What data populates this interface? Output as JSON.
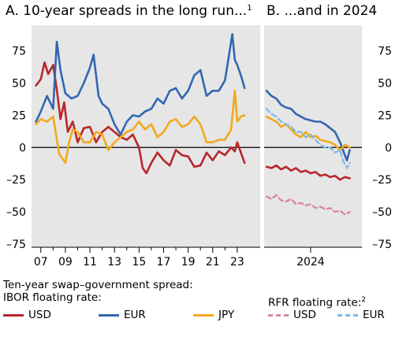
{
  "colors": {
    "usd": "#b8262a",
    "eur": "#3366b2",
    "jpy": "#f2a91d",
    "rfr_usd": "#d98a9e",
    "rfr_eur": "#7fbbe8",
    "panel_bg": "#e6e6e6"
  },
  "chart_data": [
    {
      "type": "line",
      "title": "A. 10-year spreads in the long run...",
      "title_note": "1",
      "x_tick_labels": [
        "07",
        "09",
        "11",
        "13",
        "15",
        "17",
        "19",
        "21",
        "23"
      ],
      "x_ticks": [
        2007,
        2009,
        2011,
        2013,
        2015,
        2017,
        2019,
        2021,
        2023
      ],
      "xlim": [
        2006.5,
        2024.1
      ],
      "ylim": [
        -75,
        90
      ],
      "y_ticks": [
        -75,
        -50,
        -25,
        0,
        25,
        50,
        75
      ],
      "y_tick_labels": [
        "–75",
        "–50",
        "–25",
        "0",
        "25",
        "50",
        "75"
      ],
      "y_axis_side": "left",
      "series": [
        {
          "key": "usd",
          "x": [
            2006.6,
            2007.0,
            2007.3,
            2007.6,
            2008.0,
            2008.3,
            2008.6,
            2008.9,
            2009.2,
            2009.6,
            2010.0,
            2010.5,
            2011.0,
            2011.5,
            2012.0,
            2012.5,
            2013.0,
            2013.5,
            2014.0,
            2014.5,
            2015.0,
            2015.3,
            2015.6,
            2016.0,
            2016.5,
            2017.0,
            2017.5,
            2018.0,
            2018.5,
            2019.0,
            2019.5,
            2020.0,
            2020.5,
            2021.0,
            2021.5,
            2022.0,
            2022.5,
            2022.8,
            2023.0,
            2023.3,
            2023.6
          ],
          "y": [
            48,
            53,
            66,
            57,
            64,
            45,
            22,
            35,
            12,
            20,
            4,
            15,
            16,
            4,
            12,
            16,
            12,
            8,
            6,
            10,
            0,
            -16,
            -20,
            -12,
            -4,
            -10,
            -14,
            -2,
            -6,
            -7,
            -15,
            -14,
            -4,
            -10,
            -3,
            -6,
            0,
            -3,
            4,
            -4,
            -12
          ]
        },
        {
          "key": "eur",
          "x": [
            2006.6,
            2007.0,
            2007.5,
            2008.0,
            2008.3,
            2008.6,
            2009.0,
            2009.5,
            2010.0,
            2010.5,
            2011.0,
            2011.3,
            2011.7,
            2012.0,
            2012.5,
            2013.0,
            2013.5,
            2014.0,
            2014.5,
            2015.0,
            2015.5,
            2016.0,
            2016.5,
            2017.0,
            2017.5,
            2018.0,
            2018.5,
            2019.0,
            2019.5,
            2020.0,
            2020.5,
            2021.0,
            2021.5,
            2022.0,
            2022.3,
            2022.6,
            2022.8,
            2023.0,
            2023.3,
            2023.6
          ],
          "y": [
            20,
            28,
            40,
            30,
            82,
            60,
            42,
            38,
            40,
            50,
            62,
            72,
            40,
            34,
            30,
            18,
            10,
            20,
            25,
            24,
            28,
            30,
            38,
            34,
            44,
            46,
            38,
            44,
            56,
            60,
            40,
            44,
            44,
            52,
            70,
            88,
            68,
            64,
            56,
            46
          ]
        },
        {
          "key": "jpy",
          "x": [
            2006.6,
            2007.0,
            2007.5,
            2008.0,
            2008.5,
            2009.0,
            2009.3,
            2009.6,
            2010.0,
            2010.5,
            2011.0,
            2011.5,
            2012.0,
            2012.5,
            2013.0,
            2013.5,
            2014.0,
            2014.5,
            2015.0,
            2015.5,
            2016.0,
            2016.5,
            2017.0,
            2017.5,
            2018.0,
            2018.5,
            2019.0,
            2019.5,
            2020.0,
            2020.5,
            2021.0,
            2021.5,
            2022.0,
            2022.5,
            2022.8,
            2023.0,
            2023.3,
            2023.6
          ],
          "y": [
            18,
            22,
            20,
            24,
            -5,
            -12,
            4,
            14,
            12,
            4,
            4,
            12,
            10,
            -2,
            4,
            8,
            12,
            14,
            20,
            14,
            18,
            8,
            12,
            20,
            22,
            16,
            18,
            24,
            18,
            4,
            4,
            6,
            6,
            14,
            44,
            20,
            24,
            25
          ]
        }
      ]
    },
    {
      "type": "line",
      "title": "B. ...and in 2024",
      "x_tick_labels": [
        "2024"
      ],
      "x_ticks": [
        2024.45
      ],
      "xlim": [
        2024.0,
        2024.95
      ],
      "ylim": [
        -75,
        90
      ],
      "y_ticks": [
        -75,
        -50,
        -25,
        0,
        25,
        50,
        75
      ],
      "y_tick_labels": [
        "–75",
        "–50",
        "–25",
        "0",
        "25",
        "50",
        "75"
      ],
      "y_axis_side": "right",
      "series": [
        {
          "key": "eur",
          "x": [
            2024.0,
            2024.05,
            2024.1,
            2024.15,
            2024.2,
            2024.25,
            2024.3,
            2024.35,
            2024.4,
            2024.45,
            2024.5,
            2024.55,
            2024.6,
            2024.65,
            2024.7,
            2024.75,
            2024.78,
            2024.82,
            2024.85
          ],
          "y": [
            44,
            40,
            38,
            33,
            31,
            30,
            26,
            24,
            22,
            21,
            20,
            20,
            18,
            15,
            12,
            4,
            -2,
            -10,
            -2
          ]
        },
        {
          "key": "jpy",
          "x": [
            2024.0,
            2024.05,
            2024.1,
            2024.15,
            2024.2,
            2024.25,
            2024.3,
            2024.35,
            2024.4,
            2024.45,
            2024.5,
            2024.55,
            2024.6,
            2024.65,
            2024.7,
            2024.75,
            2024.8,
            2024.85
          ],
          "y": [
            24,
            22,
            20,
            16,
            18,
            14,
            10,
            8,
            12,
            8,
            9,
            6,
            5,
            4,
            2,
            -2,
            2,
            0
          ]
        },
        {
          "key": "rfr_eur",
          "x": [
            2024.0,
            2024.05,
            2024.1,
            2024.15,
            2024.2,
            2024.25,
            2024.3,
            2024.35,
            2024.4,
            2024.45,
            2024.5,
            2024.55,
            2024.6,
            2024.65,
            2024.7,
            2024.75,
            2024.78,
            2024.82,
            2024.85
          ],
          "y": [
            30,
            26,
            24,
            20,
            18,
            16,
            12,
            12,
            8,
            10,
            6,
            2,
            0,
            0,
            -4,
            -2,
            -10,
            -16,
            -12
          ]
        },
        {
          "key": "usd",
          "x": [
            2024.0,
            2024.05,
            2024.1,
            2024.15,
            2024.2,
            2024.25,
            2024.3,
            2024.35,
            2024.4,
            2024.45,
            2024.5,
            2024.55,
            2024.6,
            2024.65,
            2024.7,
            2024.75,
            2024.8,
            2024.85
          ],
          "y": [
            -15,
            -16,
            -14,
            -17,
            -15,
            -18,
            -16,
            -19,
            -18,
            -20,
            -19,
            -22,
            -21,
            -23,
            -22,
            -25,
            -23,
            -24
          ]
        },
        {
          "key": "rfr_usd",
          "x": [
            2024.0,
            2024.05,
            2024.1,
            2024.15,
            2024.2,
            2024.25,
            2024.3,
            2024.35,
            2024.4,
            2024.45,
            2024.5,
            2024.55,
            2024.6,
            2024.65,
            2024.7,
            2024.75,
            2024.8,
            2024.85
          ],
          "y": [
            -38,
            -40,
            -37,
            -41,
            -42,
            -40,
            -44,
            -43,
            -45,
            -44,
            -47,
            -46,
            -48,
            -47,
            -50,
            -49,
            -52,
            -50
          ]
        }
      ]
    }
  ],
  "legend": {
    "title": "Ten-year swap–government spread:",
    "ibor_label": "IBOR floating rate:",
    "rfr_label": "RFR floating rate:",
    "rfr_note": "2",
    "usd": "USD",
    "eur": "EUR",
    "jpy": "JPY",
    "rfr_usd": "USD",
    "rfr_eur": "EUR"
  }
}
